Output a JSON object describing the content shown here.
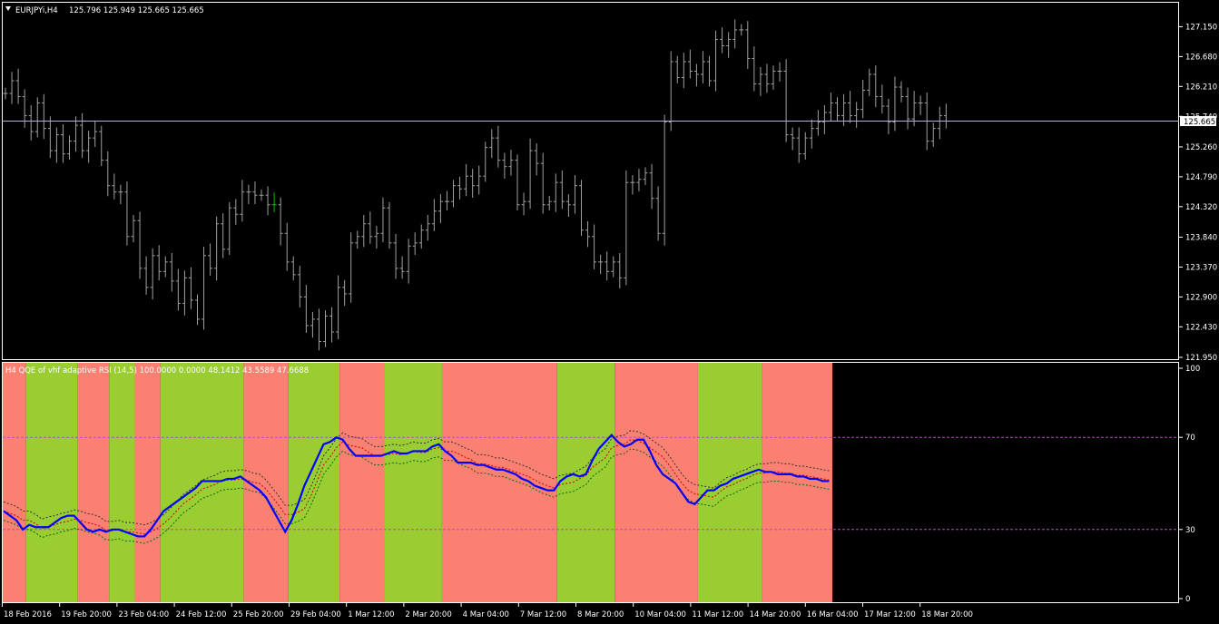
{
  "price_panel": {
    "symbol_header": "EURJPYi,H4",
    "ohlc_header": "125.796 125.949 125.665 125.665",
    "last_price_label": "125.665",
    "last_price": 125.665,
    "price_axis_ticks": [
      "127.150",
      "126.680",
      "126.210",
      "125.740",
      "125.260",
      "124.790",
      "124.320",
      "123.840",
      "123.370",
      "122.900",
      "122.430",
      "121.950"
    ],
    "colors": {
      "bar": "#a0a0a0",
      "bid_line": "#b4b4d2",
      "highlight_bar": "#00c800"
    }
  },
  "indicator_panel": {
    "header": "H4 QQE of vhf adaptive RSI (14,5) 100.0000 0.0000 48.1412 43.5589 47.6688",
    "axis_ticks": [
      "100",
      "70",
      "30",
      "0"
    ],
    "levels": [
      70,
      30
    ],
    "colors": {
      "up_zone": "#9acd32",
      "down_zone": "#fa8072",
      "main_line": "#0000ff",
      "level_line": "#b84ac4",
      "trail_line": "#333333",
      "trail_red": "#cc0000",
      "trail_green": "#116611"
    }
  },
  "time_axis": {
    "labels": [
      "18 Feb 2016",
      "19 Feb 20:00",
      "23 Feb 04:00",
      "24 Feb 12:00",
      "25 Feb 20:00",
      "29 Feb 04:00",
      "1 Mar 12:00",
      "2 Mar 20:00",
      "4 Mar 04:00",
      "7 Mar 12:00",
      "8 Mar 20:00",
      "10 Mar 04:00",
      "11 Mar 12:00",
      "14 Mar 20:00",
      "16 Mar 04:00",
      "17 Mar 12:00",
      "18 Mar 20:00"
    ]
  },
  "chart_data": [
    {
      "type": "ohlc",
      "title": "EURJPYi,H4",
      "ylim": [
        121.95,
        127.37
      ],
      "series": [
        {
          "name": "EURJPYi,H4",
          "closes": [
            126.1,
            126.3,
            126.05,
            125.75,
            125.5,
            125.95,
            125.55,
            125.2,
            125.45,
            125.15,
            125.35,
            125.6,
            125.2,
            125.4,
            125.5,
            125.05,
            124.65,
            124.55,
            124.55,
            123.85,
            124.1,
            123.35,
            123.05,
            123.55,
            123.3,
            123.45,
            123.15,
            122.8,
            123.2,
            122.85,
            122.55,
            123.55,
            123.35,
            124.05,
            123.65,
            124.3,
            124.2,
            124.55,
            124.55,
            124.5,
            124.5,
            124.35,
            124.35,
            123.9,
            123.45,
            123.25,
            122.9,
            122.45,
            122.55,
            122.2,
            122.6,
            122.35,
            123.05,
            122.95,
            123.75,
            123.85,
            124.05,
            123.85,
            123.9,
            124.3,
            123.75,
            123.35,
            123.3,
            123.7,
            123.75,
            123.95,
            124.05,
            124.25,
            124.4,
            124.4,
            124.65,
            124.6,
            124.8,
            124.65,
            124.8,
            125.25,
            125.4,
            125.05,
            124.95,
            125.05,
            124.35,
            124.4,
            125.2,
            125.0,
            124.35,
            124.4,
            124.7,
            124.4,
            124.35,
            124.65,
            123.95,
            123.85,
            123.45,
            123.45,
            123.3,
            123.45,
            123.2,
            124.7,
            124.7,
            124.75,
            124.85,
            124.45,
            123.9,
            125.65,
            126.6,
            126.35,
            126.6,
            126.45,
            126.4,
            126.6,
            126.3,
            126.95,
            126.85,
            126.95,
            127.1,
            127.1,
            126.65,
            126.25,
            126.4,
            126.25,
            126.45,
            126.45,
            125.45,
            125.4,
            125.15,
            125.4,
            125.55,
            125.65,
            125.8,
            125.95,
            125.75,
            125.95,
            125.75,
            125.85,
            126.15,
            126.4,
            126.05,
            125.9,
            125.65,
            126.2,
            126.05,
            125.7,
            125.95,
            125.95,
            125.35,
            125.55,
            125.75,
            125.665
          ]
        }
      ]
    },
    {
      "type": "line",
      "title": "H4 QQE of vhf adaptive RSI (14,5) 100.0000 0.0000 48.1412 43.5589 47.6688",
      "ylim": [
        0,
        100
      ],
      "series": [
        {
          "name": "QQE",
          "values": [
            38,
            36,
            34,
            30,
            32,
            31,
            31,
            31,
            33,
            35,
            36,
            36,
            33,
            30,
            29,
            30,
            29,
            30,
            30,
            29,
            28,
            27,
            27,
            30,
            34,
            38,
            40,
            42,
            44,
            46,
            48,
            51,
            51,
            51,
            51,
            52,
            52,
            53,
            51,
            49,
            47,
            44,
            39,
            34,
            29,
            34,
            41,
            49,
            55,
            61,
            67,
            68,
            70,
            69,
            65,
            62,
            62,
            62,
            62,
            62,
            63,
            64,
            63,
            63,
            64,
            64,
            64,
            66,
            67,
            64,
            62,
            59,
            59,
            59,
            58,
            58,
            57,
            56,
            56,
            55,
            54,
            52,
            51,
            49,
            48,
            47,
            47,
            51,
            53,
            54,
            53,
            54,
            60,
            65,
            68,
            71,
            68,
            66,
            67,
            69,
            69,
            64,
            58,
            54,
            52,
            50,
            46,
            42,
            41,
            44,
            47,
            47,
            49,
            50,
            52,
            53,
            54,
            55,
            56,
            55,
            55,
            54,
            54,
            54,
            53,
            53,
            52,
            52,
            51,
            51
          ]
        }
      ]
    }
  ]
}
